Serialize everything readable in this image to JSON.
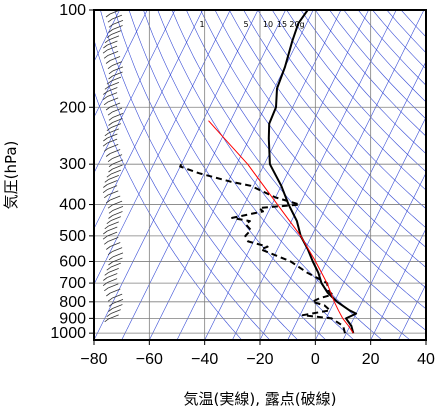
{
  "chart_data": {
    "type": "line",
    "subtype": "skew-T log-P thermodynamic diagram",
    "xlabel": "気温(実線), 露点(破線)",
    "ylabel": "気圧(hPa)",
    "xlim": [
      -80,
      40
    ],
    "ylim": [
      1050,
      100
    ],
    "y_scale": "log",
    "x_ticks": [
      -80,
      -60,
      -40,
      -20,
      0,
      20,
      40
    ],
    "x_tick_labels": [
      "−80",
      "−60",
      "−40",
      "−20",
      "0",
      "20",
      "40"
    ],
    "y_ticks": [
      100,
      200,
      300,
      400,
      500,
      600,
      700,
      800,
      900,
      1000
    ],
    "grid": true,
    "mixing_ratio_labels": [
      "1",
      "5",
      "10",
      "15",
      "20g"
    ],
    "colors": {
      "grid": "#7f7f7f",
      "background_lines": "#3a4ed6",
      "temperature": "#000000",
      "dewpoint": "#000000",
      "parcel": "#ff0000"
    },
    "series": [
      {
        "style": "solid-black",
        "pressure": [
          1000,
          950,
          900,
          870,
          850,
          800,
          750,
          700,
          650,
          600,
          550,
          500,
          450,
          400,
          350,
          300,
          250,
          225,
          200,
          175,
          150,
          125,
          110,
          100
        ],
        "temperature": [
          12.5,
          10.5,
          7.2,
          10.0,
          7.0,
          1.0,
          -4.0,
          -8.0,
          -11.0,
          -15.0,
          -19.0,
          -24.0,
          -28.0,
          -34.0,
          -40.0,
          -48.0,
          -53.0,
          -55.5,
          -56.0,
          -59.0,
          -60.0,
          -62.0,
          -63.0,
          -62.0
        ]
      },
      {
        "style": "dashed-black",
        "pressure": [
          1000,
          950,
          900,
          880,
          850,
          820,
          800,
          780,
          760,
          740,
          700,
          650,
          600,
          550,
          540,
          520,
          500,
          480,
          460,
          450,
          440,
          420,
          410,
          400,
          380,
          350,
          340,
          320,
          305,
          300
        ],
        "dewpoint": [
          9.5,
          7.5,
          2.0,
          -9.0,
          0.0,
          -3.0,
          -8.0,
          -6.0,
          -2.0,
          -4.0,
          -6.0,
          -15.0,
          -23.0,
          -36.0,
          -34.0,
          -42.0,
          -44.0,
          -43.0,
          -46.0,
          -45.0,
          -52.0,
          -42.0,
          -44.0,
          -30.0,
          -40.0,
          -51.0,
          -59.0,
          -72.0,
          -80.0,
          -80.0
        ]
      },
      {
        "style": "solid-red",
        "pressure": [
          1000,
          950,
          900,
          850,
          800,
          700,
          600,
          500,
          400,
          300,
          250,
          220
        ],
        "temperature": [
          12.5,
          9.5,
          6.0,
          3.0,
          0.0,
          -6.0,
          -14.0,
          -24.0,
          -38.0,
          -56.0,
          -69.0,
          -78.0
        ]
      }
    ],
    "wind_barbs": {
      "side": "left",
      "count_approx": 60
    }
  }
}
